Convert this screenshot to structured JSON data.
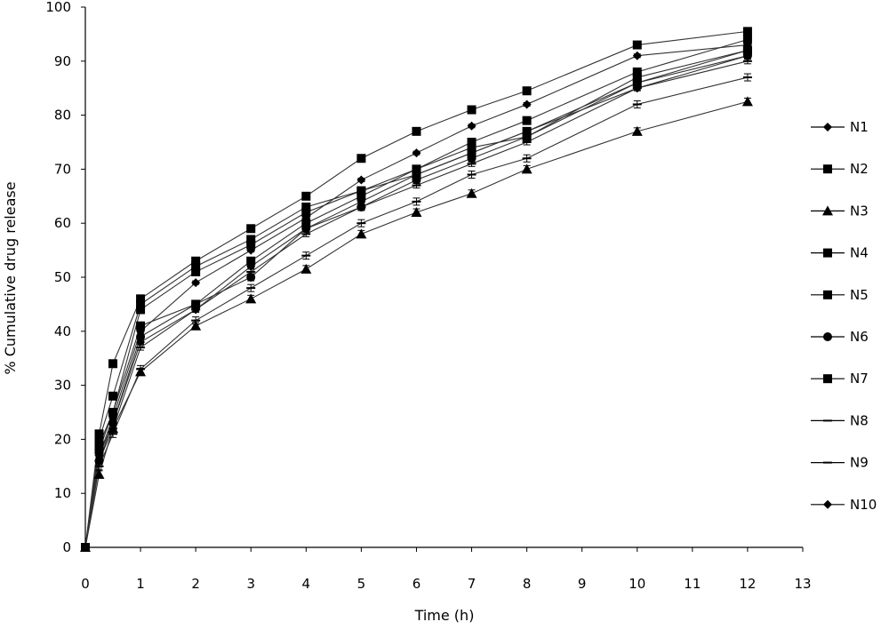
{
  "chart_data": {
    "type": "line",
    "xlabel": "Time (h)",
    "ylabel": "% Cumulative drug release",
    "xlim": [
      0,
      13
    ],
    "ylim": [
      0,
      100
    ],
    "x_ticks": [
      "0",
      "1",
      "2",
      "3",
      "4",
      "5",
      "6",
      "7",
      "8",
      "9",
      "10",
      "11",
      "12",
      "13"
    ],
    "y_ticks": [
      "0",
      "10",
      "20",
      "30",
      "40",
      "50",
      "60",
      "70",
      "80",
      "90",
      "100"
    ],
    "grid": false,
    "legend_position": "right",
    "error_bars": true,
    "x": [
      0,
      0.25,
      0.5,
      1,
      2,
      3,
      4,
      5,
      6,
      7,
      8,
      10,
      12
    ],
    "series": [
      {
        "name": "N1",
        "marker": "diamond",
        "values": [
          0,
          17,
          24,
          40,
          49,
          55,
          61,
          68,
          73,
          78,
          82,
          91,
          93
        ]
      },
      {
        "name": "N2",
        "marker": "square",
        "values": [
          0,
          18,
          25,
          44,
          51,
          56,
          62,
          66,
          69,
          73,
          77,
          86,
          92
        ]
      },
      {
        "name": "N3",
        "marker": "triangle",
        "values": [
          0,
          13.5,
          22,
          32.5,
          41,
          46,
          51.5,
          58,
          62,
          65.5,
          70,
          77,
          82.5
        ]
      },
      {
        "name": "N4",
        "marker": "square",
        "values": [
          0,
          20,
          28,
          45,
          52,
          57,
          63,
          66,
          70,
          75,
          79,
          88,
          94
        ]
      },
      {
        "name": "N5",
        "marker": "square",
        "values": [
          0,
          21,
          34,
          46,
          53,
          59,
          65,
          72,
          77,
          81,
          84.5,
          93,
          95.5
        ]
      },
      {
        "name": "N6",
        "marker": "circle",
        "values": [
          0,
          16,
          23,
          39,
          45,
          50,
          59,
          63,
          68,
          72,
          76,
          86,
          91
        ]
      },
      {
        "name": "N7",
        "marker": "square",
        "values": [
          0,
          19,
          25,
          41,
          45,
          53,
          60,
          65,
          70,
          74,
          76,
          87,
          92
        ]
      },
      {
        "name": "N8",
        "marker": "dash",
        "values": [
          0,
          16,
          22,
          37,
          44,
          51,
          58,
          63,
          67,
          71,
          75,
          85,
          90
        ]
      },
      {
        "name": "N9",
        "marker": "dash",
        "values": [
          0,
          15,
          21,
          33,
          42,
          48,
          54,
          60,
          64,
          69,
          72,
          82,
          87
        ]
      },
      {
        "name": "N10",
        "marker": "diamond",
        "values": [
          0,
          17,
          23,
          38,
          44,
          52,
          59,
          64,
          69,
          73,
          77,
          85,
          91
        ]
      }
    ]
  }
}
